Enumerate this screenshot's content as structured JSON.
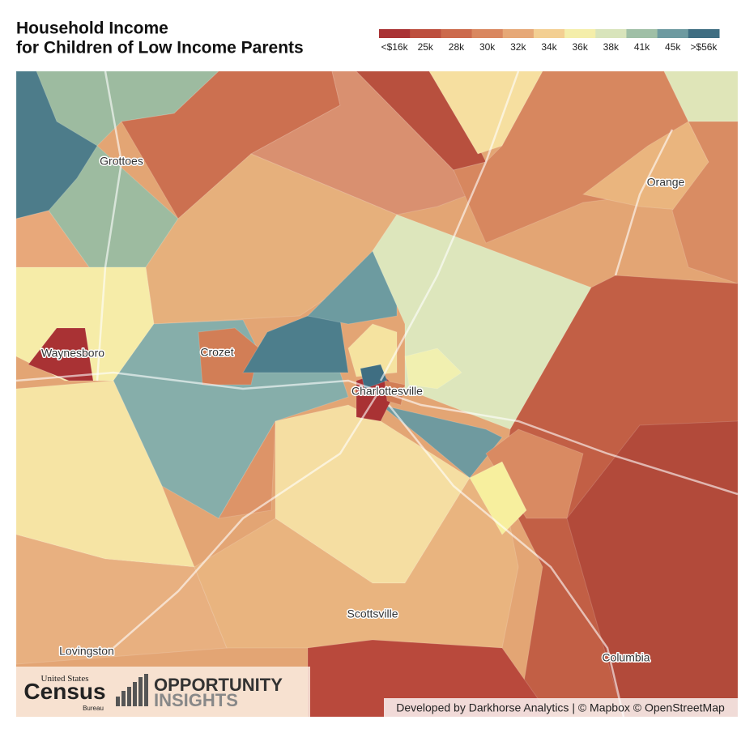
{
  "title": {
    "line1": "Household Income",
    "line2": "for Children of Low Income Parents"
  },
  "legend": {
    "labels": [
      "<$16k",
      "25k",
      "28k",
      "30k",
      "32k",
      "34k",
      "36k",
      "38k",
      "41k",
      "45k",
      ">$56k"
    ],
    "colors": [
      "#a93234",
      "#bd4f3e",
      "#cc6a4c",
      "#d9875f",
      "#e6a877",
      "#f3cf92",
      "#f4eeaa",
      "#d8e4bb",
      "#9fbfa6",
      "#6d9aa0",
      "#3f6e82"
    ]
  },
  "places": [
    "Grottoes",
    "Orange",
    "Waynesboro",
    "Crozet",
    "Charlottesville",
    "Scottsville",
    "Lovingston",
    "Columbia"
  ],
  "logos": {
    "census_top": "United States",
    "census": "Census",
    "census_bottom": "Bureau",
    "oi_line1": "OPPORTUNITY",
    "oi_line2": "INSIGHTS"
  },
  "attribution": "Developed by Darkhorse Analytics | © Mapbox © OpenStreetMap"
}
